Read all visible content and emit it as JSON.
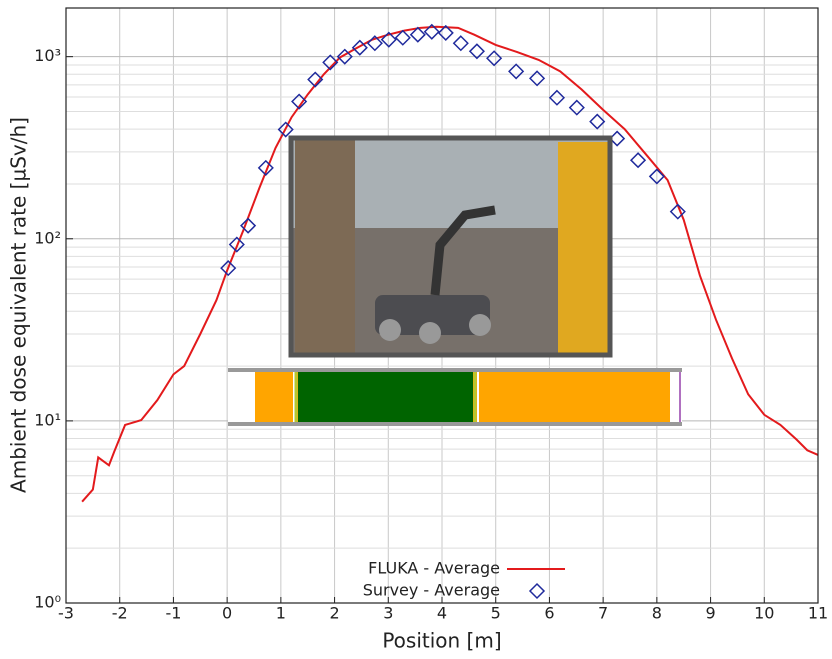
{
  "chart_data": {
    "type": "line",
    "xlabel": "Position [m]",
    "ylabel": "Ambient dose equivalent rate [µSv/h]",
    "xlim": [
      -3,
      11
    ],
    "ylim": [
      1,
      1850
    ],
    "log_y": true,
    "grid": true,
    "legend": "bottom",
    "xticks": [
      -3,
      -2,
      -1,
      0,
      1,
      2,
      3,
      4,
      5,
      6,
      7,
      8,
      9,
      10,
      11
    ],
    "yticks": [
      {
        "value": 1,
        "label": "10⁰"
      },
      {
        "value": 10,
        "label": "10¹"
      },
      {
        "value": 100,
        "label": "10²"
      },
      {
        "value": 1000,
        "label": "10³"
      }
    ],
    "yminorticks": [
      2,
      3,
      4,
      5,
      6,
      7,
      8,
      9,
      20,
      30,
      40,
      50,
      60,
      70,
      80,
      90,
      200,
      300,
      400,
      500,
      600,
      700,
      800,
      900
    ],
    "series": [
      {
        "name": "FLUKA - Average",
        "type": "line",
        "color": "#e31a1c",
        "x": [
          -2.7,
          -2.5,
          -2.4,
          -2.2,
          -2.1,
          -1.9,
          -1.6,
          -1.3,
          -1.0,
          -0.8,
          -0.5,
          -0.2,
          0.0,
          0.3,
          0.6,
          0.9,
          1.2,
          1.5,
          1.8,
          2.1,
          2.4,
          2.7,
          3.0,
          3.3,
          3.6,
          3.9,
          4.3,
          4.6,
          5.0,
          5.4,
          5.8,
          6.2,
          6.6,
          7.0,
          7.4,
          7.8,
          8.2,
          8.5,
          8.8,
          9.1,
          9.4,
          9.7,
          10.0,
          10.3,
          10.6,
          10.8,
          11.0
        ],
        "values": [
          3.6,
          4.2,
          6.3,
          5.7,
          6.8,
          9.5,
          10.1,
          13,
          18,
          20,
          30,
          46,
          67,
          111,
          190,
          315,
          465,
          620,
          800,
          990,
          1110,
          1240,
          1320,
          1390,
          1440,
          1460,
          1440,
          1320,
          1160,
          1060,
          960,
          830,
          660,
          510,
          400,
          290,
          210,
          127,
          63,
          36,
          22,
          14,
          10.8,
          9.5,
          7.9,
          6.9,
          6.5
        ]
      },
      {
        "name": "Survey - Average",
        "type": "scatter",
        "color": "#1f2a9c",
        "x": [
          0.02,
          0.18,
          0.39,
          0.72,
          1.09,
          1.34,
          1.64,
          1.92,
          2.19,
          2.47,
          2.75,
          3.01,
          3.27,
          3.55,
          3.81,
          4.07,
          4.35,
          4.65,
          4.97,
          5.38,
          5.77,
          6.14,
          6.51,
          6.89,
          7.26,
          7.65,
          8.0,
          8.39
        ],
        "values": [
          69,
          93,
          118,
          245,
          398,
          567,
          749,
          930,
          1000,
          1120,
          1185,
          1240,
          1270,
          1320,
          1370,
          1350,
          1185,
          1070,
          980,
          830,
          760,
          595,
          525,
          440,
          355,
          270,
          220,
          141
        ]
      }
    ]
  }
}
